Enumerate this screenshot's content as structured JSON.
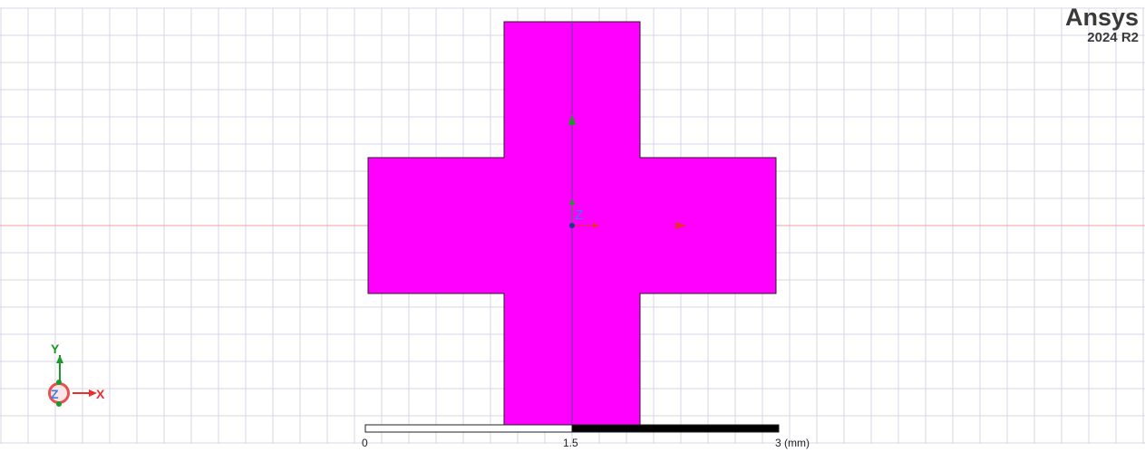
{
  "branding": {
    "name": "Ansys",
    "version": "2024 R2"
  },
  "model": {
    "color": "#ff00ff",
    "origin_label": "Z"
  },
  "scale_bar": {
    "labels": [
      "0",
      "1.5",
      "3 (mm)"
    ]
  },
  "triad": {
    "x_label": "X",
    "y_label": "Y",
    "z_label": "Z"
  },
  "colors": {
    "grid": "#d9d5e6",
    "x_axis": "#e53030",
    "y_axis": "#1a9a2a",
    "z_axis": "#3a7ee6",
    "outline": "#222222"
  }
}
